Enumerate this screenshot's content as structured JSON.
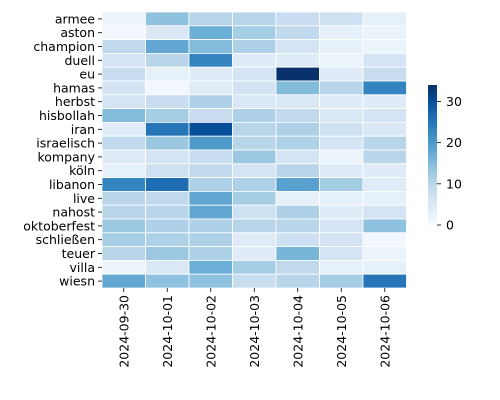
{
  "chart_data": {
    "type": "heatmap",
    "title": "",
    "xlabel": "",
    "ylabel": "",
    "x_categories": [
      "2024-09-30",
      "2024-10-01",
      "2024-10-02",
      "2024-10-03",
      "2024-10-04",
      "2024-10-05",
      "2024-10-06"
    ],
    "y_categories": [
      "armee",
      "aston",
      "champion",
      "duell",
      "eu",
      "hamas",
      "herbst",
      "hisbollah",
      "iran",
      "israelisch",
      "kompany",
      "köln",
      "libanon",
      "live",
      "nahost",
      "oktoberfest",
      "schließen",
      "teuer",
      "villa",
      "wiesn"
    ],
    "values": [
      [
        2,
        14,
        10,
        10,
        8,
        7,
        3
      ],
      [
        1,
        5,
        17,
        12,
        9,
        3,
        2
      ],
      [
        9,
        18,
        15,
        11,
        6,
        3,
        2
      ],
      [
        6,
        10,
        23,
        4,
        4,
        2,
        6
      ],
      [
        8,
        3,
        4,
        6,
        34,
        4,
        8
      ],
      [
        6,
        1,
        4,
        6,
        15,
        10,
        23
      ],
      [
        6,
        8,
        11,
        5,
        5,
        4,
        4
      ],
      [
        15,
        12,
        8,
        11,
        9,
        5,
        6
      ],
      [
        4,
        25,
        30,
        10,
        11,
        7,
        5
      ],
      [
        9,
        13,
        20,
        10,
        11,
        6,
        10
      ],
      [
        4,
        6,
        8,
        13,
        6,
        2,
        10
      ],
      [
        3,
        7,
        9,
        6,
        10,
        4,
        4
      ],
      [
        23,
        26,
        11,
        11,
        19,
        12,
        4
      ],
      [
        10,
        9,
        18,
        12,
        3,
        3,
        3
      ],
      [
        10,
        10,
        18,
        7,
        11,
        4,
        6
      ],
      [
        13,
        11,
        11,
        10,
        10,
        6,
        14
      ],
      [
        12,
        11,
        11,
        4,
        7,
        6,
        1
      ],
      [
        10,
        13,
        11,
        4,
        16,
        6,
        2
      ],
      [
        2,
        5,
        17,
        12,
        9,
        3,
        3
      ],
      [
        18,
        14,
        14,
        8,
        10,
        12,
        25
      ]
    ],
    "colorbar": {
      "min": 0,
      "max": 34,
      "ticks": [
        0,
        10,
        20,
        30
      ]
    },
    "colormap": "Blues",
    "grid": true
  }
}
